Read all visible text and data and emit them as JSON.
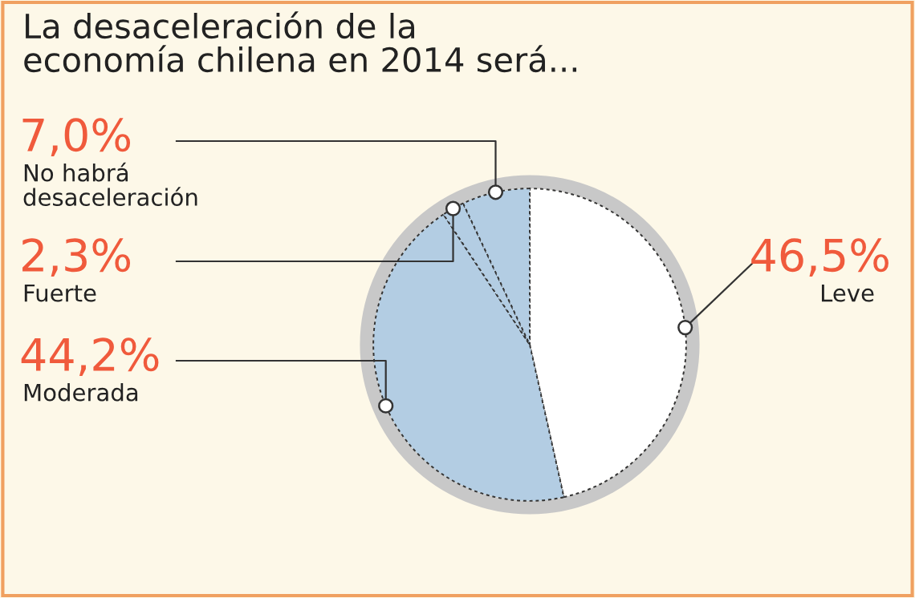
{
  "chart_data": {
    "type": "pie",
    "title": "La desaceleración de la\neconomía chilena en 2014 será...",
    "categories": [
      "Leve",
      "Moderada",
      "Fuerte",
      "No habrá\ndesaceleración"
    ],
    "values": [
      46.5,
      44.2,
      2.3,
      7.0
    ],
    "value_labels": [
      "46,5%",
      "44,2%",
      "2,3%",
      "7,0%"
    ],
    "colors": [
      "#ffffff",
      "#b3cde3",
      "#b3cde3",
      "#b3cde3"
    ],
    "legend": false
  }
}
